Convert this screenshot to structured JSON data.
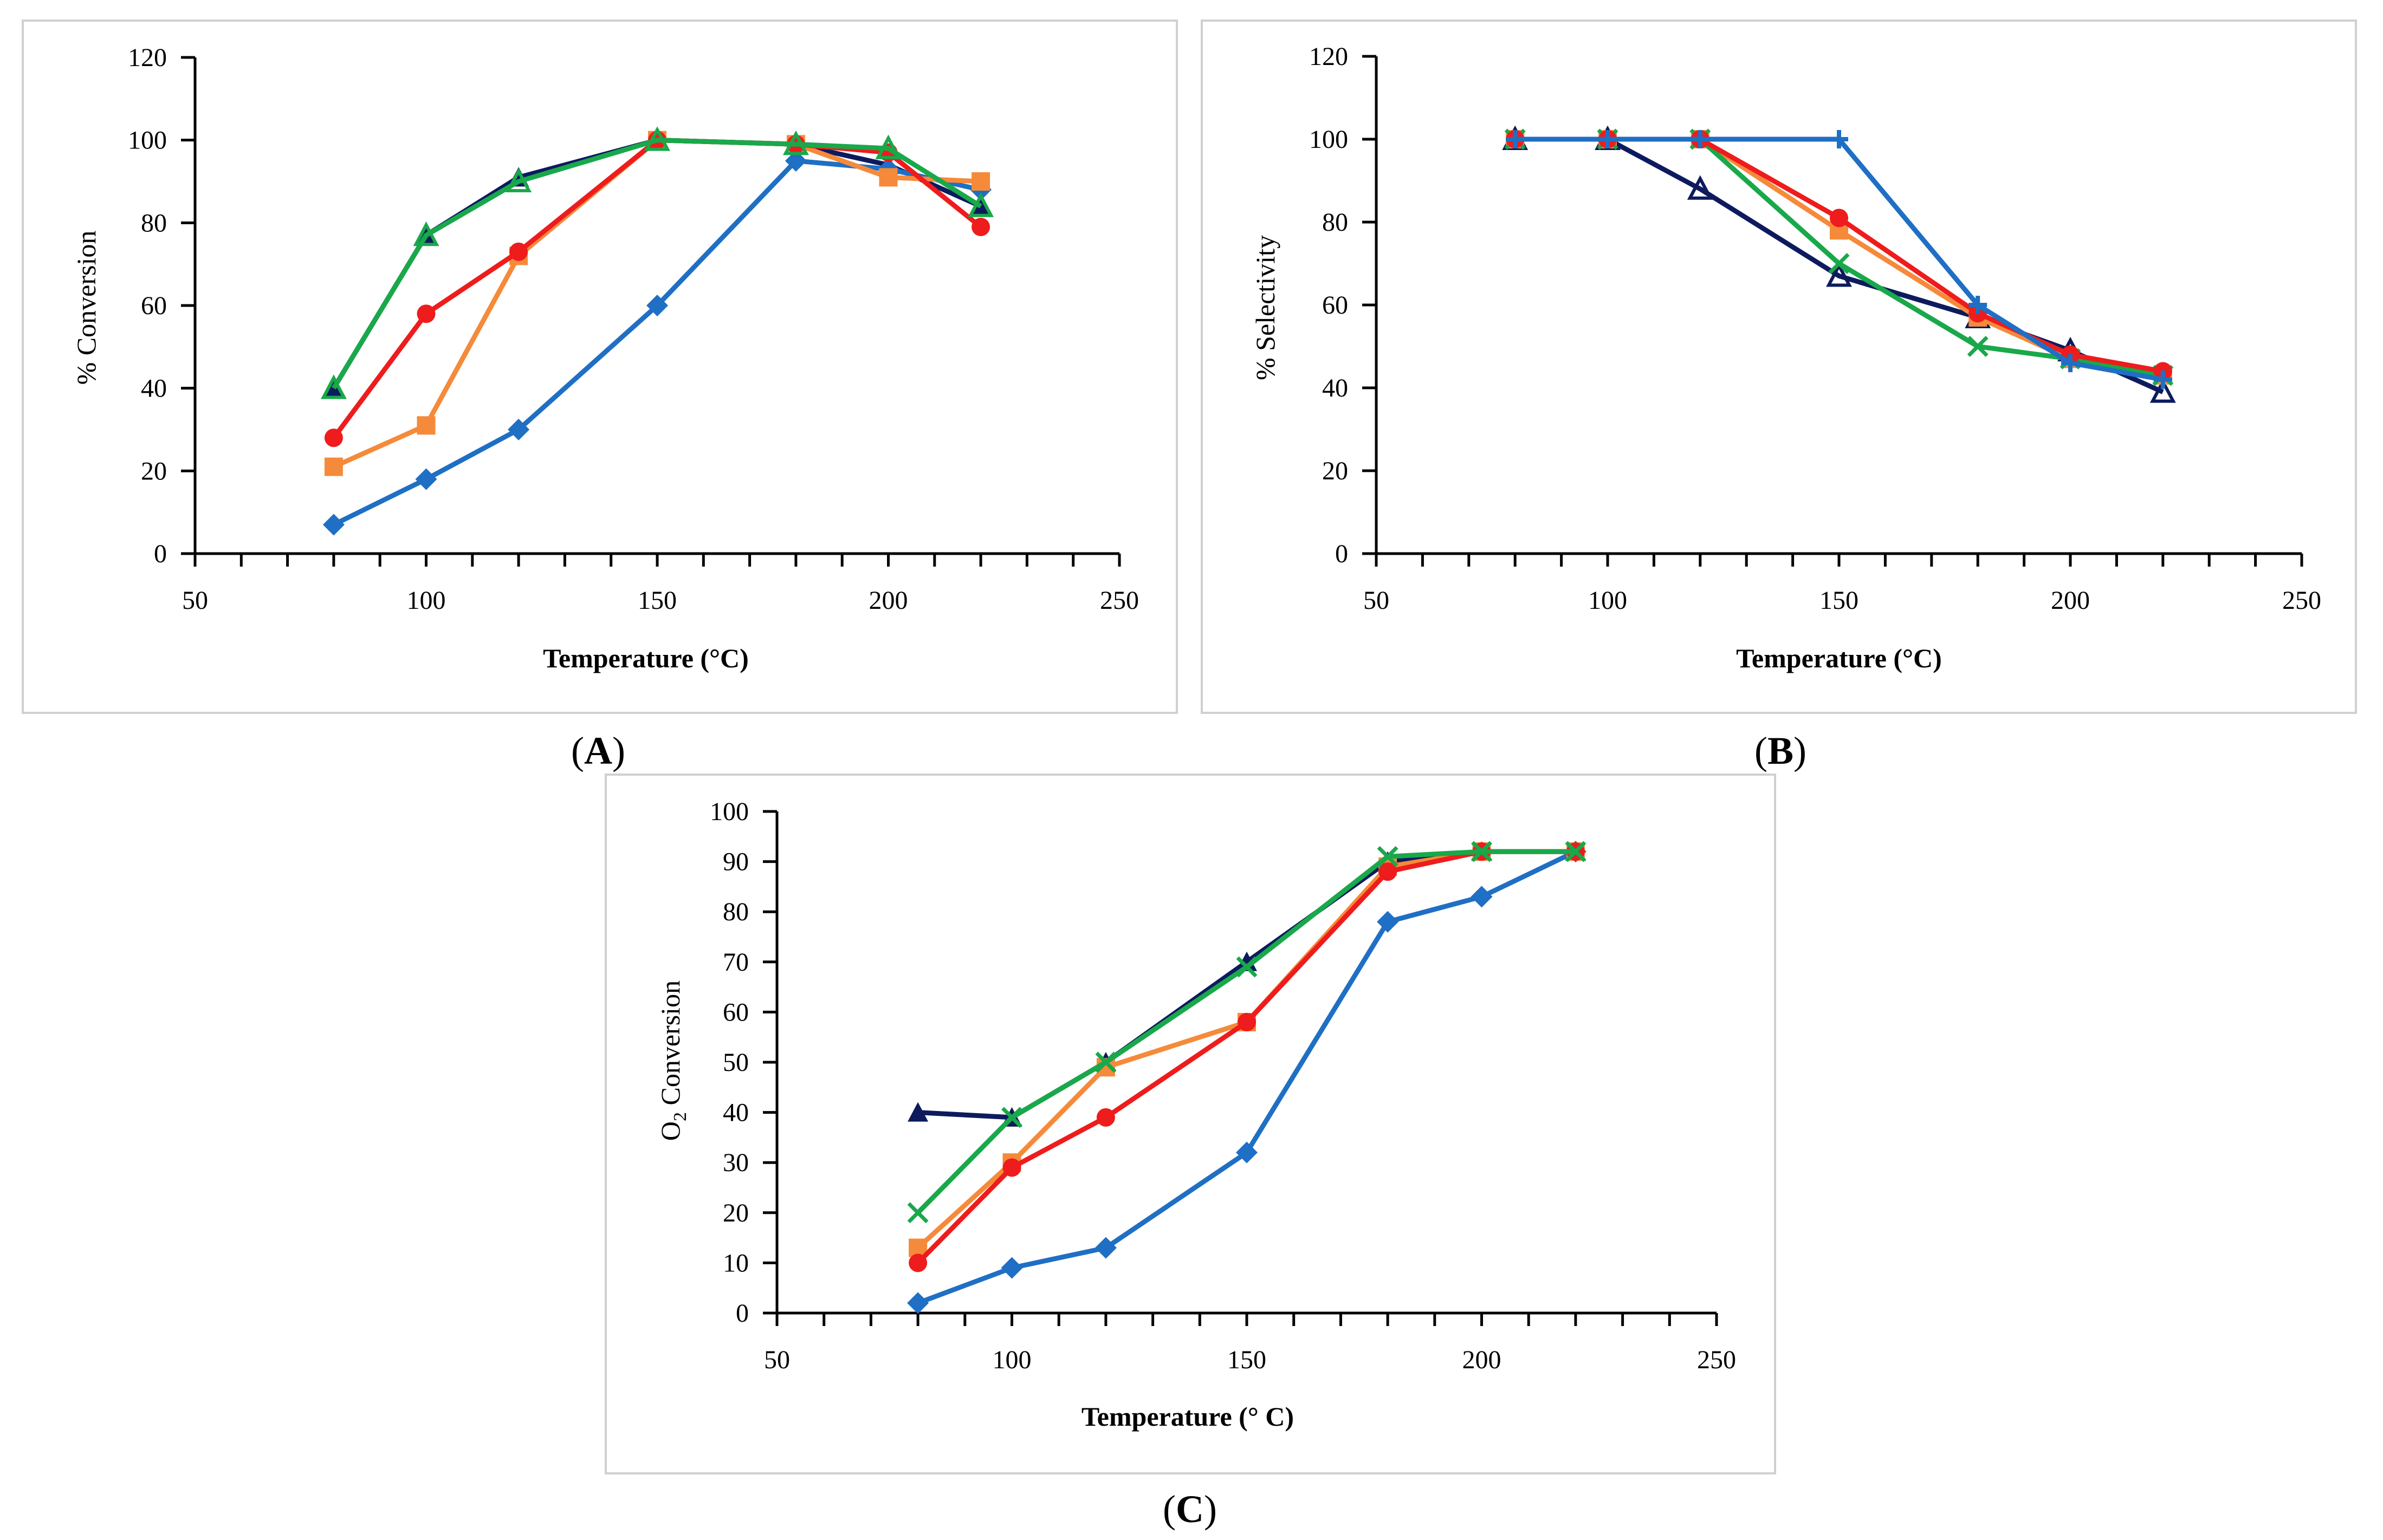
{
  "chart_data": [
    {
      "type": "line",
      "panel": "A",
      "caption_letter": "A",
      "xlabel": "Temperature (°C)",
      "ylabel": "% Conversion",
      "xlim": [
        50,
        250
      ],
      "ylim": [
        0,
        120
      ],
      "xticks": [
        50,
        100,
        150,
        200,
        250
      ],
      "yticks": [
        0,
        20,
        40,
        60,
        80,
        100,
        120
      ],
      "series": [
        {
          "name": "navy-triangle",
          "color": "#0d1b5e",
          "marker": "triangle",
          "x": [
            80,
            100,
            120,
            150,
            180,
            200,
            220
          ],
          "y": [
            40,
            77,
            91,
            100,
            99,
            94,
            84
          ]
        },
        {
          "name": "blue-diamond",
          "color": "#1f6fc4",
          "marker": "diamond",
          "x": [
            80,
            100,
            120,
            150,
            180,
            200,
            220
          ],
          "y": [
            7,
            18,
            30,
            60,
            95,
            93,
            88
          ]
        },
        {
          "name": "orange-square",
          "color": "#f58a3a",
          "marker": "square",
          "x": [
            80,
            100,
            120,
            150,
            180,
            200,
            220
          ],
          "y": [
            21,
            31,
            72,
            100,
            99,
            91,
            90
          ]
        },
        {
          "name": "red-circle",
          "color": "#ee1c1c",
          "marker": "circle",
          "x": [
            80,
            100,
            120,
            150,
            180,
            200,
            220
          ],
          "y": [
            28,
            58,
            73,
            100,
            99,
            97,
            79
          ]
        },
        {
          "name": "green-triangle",
          "color": "#19a84a",
          "marker": "triangle-hollow",
          "x": [
            80,
            100,
            120,
            150,
            180,
            200,
            220
          ],
          "y": [
            40,
            77,
            90,
            100,
            99,
            98,
            84
          ]
        }
      ]
    },
    {
      "type": "line",
      "panel": "B",
      "caption_letter": "B",
      "xlabel": "Temperature (°C)",
      "ylabel": "% Selectivity",
      "xlim": [
        50,
        250
      ],
      "ylim": [
        0,
        120
      ],
      "xticks": [
        50,
        100,
        150,
        200,
        250
      ],
      "yticks": [
        0,
        20,
        40,
        60,
        80,
        100,
        120
      ],
      "series": [
        {
          "name": "navy-hollow-triangle",
          "color": "#0d1b5e",
          "marker": "triangle-hollow",
          "x": [
            80,
            100,
            120,
            150,
            180,
            200,
            220
          ],
          "y": [
            100,
            100,
            88,
            67,
            57,
            49,
            39
          ]
        },
        {
          "name": "orange-square",
          "color": "#f58a3a",
          "marker": "square",
          "x": [
            80,
            100,
            120,
            150,
            180,
            200,
            220
          ],
          "y": [
            100,
            100,
            100,
            78,
            57,
            47,
            43
          ]
        },
        {
          "name": "green-cross",
          "color": "#19a84a",
          "marker": "x",
          "x": [
            80,
            100,
            120,
            150,
            180,
            200,
            220
          ],
          "y": [
            100,
            100,
            100,
            70,
            50,
            47,
            43
          ]
        },
        {
          "name": "red-circle",
          "color": "#ee1c1c",
          "marker": "circle",
          "x": [
            80,
            100,
            120,
            150,
            180,
            200,
            220
          ],
          "y": [
            100,
            100,
            100,
            81,
            58,
            48,
            44
          ]
        },
        {
          "name": "blue-plus",
          "color": "#1f6fc4",
          "marker": "plus",
          "x": [
            80,
            100,
            120,
            150,
            180,
            200,
            220
          ],
          "y": [
            100,
            100,
            100,
            100,
            60,
            46,
            42
          ]
        }
      ]
    },
    {
      "type": "line",
      "panel": "C",
      "caption_letter": "C",
      "xlabel": "Temperature (° C)",
      "ylabel_main": "O",
      "ylabel_sub": "2",
      "ylabel_rest": " Conversion",
      "xlim": [
        50,
        250
      ],
      "ylim": [
        0,
        100
      ],
      "xticks": [
        50,
        100,
        150,
        200,
        250
      ],
      "yticks": [
        0,
        10,
        20,
        30,
        40,
        50,
        60,
        70,
        80,
        90,
        100
      ],
      "series": [
        {
          "name": "navy-triangle",
          "color": "#0d1b5e",
          "marker": "triangle",
          "x": [
            80,
            100,
            120,
            150,
            180,
            200,
            220
          ],
          "y": [
            40,
            39,
            50,
            70,
            90,
            92,
            92
          ]
        },
        {
          "name": "blue-diamond",
          "color": "#1f6fc4",
          "marker": "diamond",
          "x": [
            80,
            100,
            120,
            150,
            180,
            200,
            220
          ],
          "y": [
            2,
            9,
            13,
            32,
            78,
            83,
            92
          ]
        },
        {
          "name": "orange-square",
          "color": "#f58a3a",
          "marker": "square",
          "x": [
            80,
            100,
            120,
            150,
            180,
            200,
            220
          ],
          "y": [
            13,
            30,
            49,
            58,
            89,
            92,
            92
          ]
        },
        {
          "name": "red-circle",
          "color": "#ee1c1c",
          "marker": "circle",
          "x": [
            80,
            100,
            120,
            150,
            180,
            200,
            220
          ],
          "y": [
            10,
            29,
            39,
            58,
            88,
            92,
            92
          ]
        },
        {
          "name": "green-cross",
          "color": "#19a84a",
          "marker": "x",
          "x": [
            80,
            100,
            120,
            150,
            180,
            200,
            220
          ],
          "y": [
            20,
            39,
            50,
            69,
            91,
            92,
            92
          ]
        }
      ]
    }
  ]
}
